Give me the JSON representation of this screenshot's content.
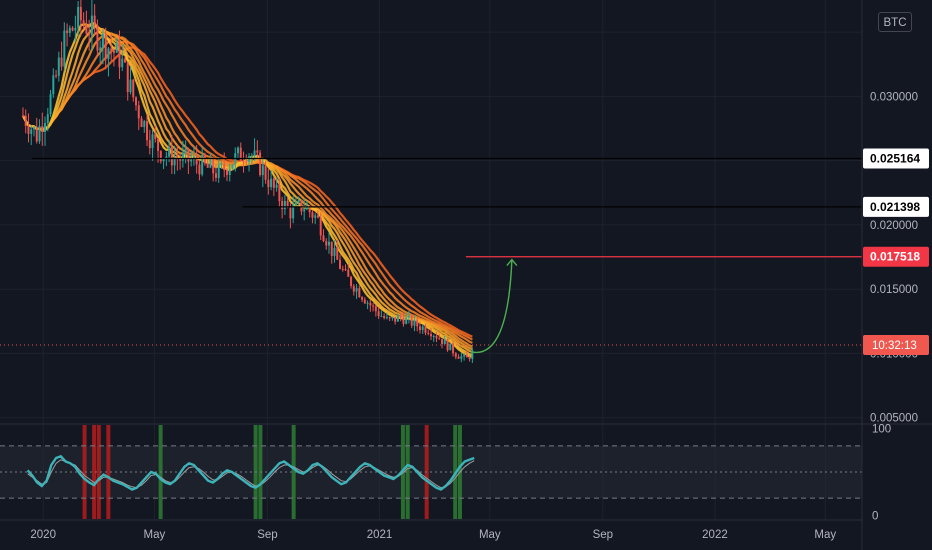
{
  "currency_label": "BTC",
  "countdown": "10:32:13",
  "colors": {
    "background": "#131722",
    "grid": "#1e222d",
    "up_candle": "#26a69a",
    "down_candle": "#ef5350",
    "ribbon_dark": "#f0611f",
    "ribbon_light": "#fbc02d",
    "support_line": "#000000",
    "target_line": "#f23645",
    "forecast_arrow": "#4caf50",
    "oscillator_main": "#3bb3b8",
    "oscillator_signal": "#9e9e9e",
    "oscillator_bull_bar": "#2e7d32",
    "oscillator_bear_bar": "#b71c1c"
  },
  "chart_data": [
    {
      "type": "candlestick",
      "pair_quote": "BTC",
      "y_scale": "linear",
      "ylim": [
        0.0045,
        0.0375
      ],
      "y_ticks": [
        "0.005000",
        "0.010000",
        "0.015000",
        "0.020000",
        "0.030000"
      ],
      "x_ticks": [
        "2020",
        "May",
        "Sep",
        "2021",
        "May",
        "Sep",
        "2022",
        "May"
      ],
      "x_tick_dates": [
        "2020-01-01",
        "2020-05-01",
        "2020-09-01",
        "2021-01-01",
        "2021-05-01",
        "2021-09-01",
        "2022-01-01",
        "2022-05-01"
      ],
      "xlim": [
        "2019-11-15",
        "2022-06-10"
      ],
      "price_path": [
        {
          "date": "2019-12-10",
          "value": 0.0285
        },
        {
          "date": "2019-12-25",
          "value": 0.027
        },
        {
          "date": "2020-01-10",
          "value": 0.03
        },
        {
          "date": "2020-01-25",
          "value": 0.0345
        },
        {
          "date": "2020-02-10",
          "value": 0.036
        },
        {
          "date": "2020-02-25",
          "value": 0.035
        },
        {
          "date": "2020-03-10",
          "value": 0.034
        },
        {
          "date": "2020-03-25",
          "value": 0.033
        },
        {
          "date": "2020-04-10",
          "value": 0.0295
        },
        {
          "date": "2020-04-25",
          "value": 0.027
        },
        {
          "date": "2020-05-10",
          "value": 0.0255
        },
        {
          "date": "2020-05-25",
          "value": 0.0252
        },
        {
          "date": "2020-06-10",
          "value": 0.025
        },
        {
          "date": "2020-06-25",
          "value": 0.0245
        },
        {
          "date": "2020-07-10",
          "value": 0.024
        },
        {
          "date": "2020-07-25",
          "value": 0.025
        },
        {
          "date": "2020-08-10",
          "value": 0.0258
        },
        {
          "date": "2020-08-25",
          "value": 0.0245
        },
        {
          "date": "2020-09-10",
          "value": 0.0225
        },
        {
          "date": "2020-09-25",
          "value": 0.021
        },
        {
          "date": "2020-10-10",
          "value": 0.0215
        },
        {
          "date": "2020-10-25",
          "value": 0.0205
        },
        {
          "date": "2020-11-10",
          "value": 0.018
        },
        {
          "date": "2020-11-25",
          "value": 0.016
        },
        {
          "date": "2020-12-10",
          "value": 0.0148
        },
        {
          "date": "2020-12-25",
          "value": 0.0135
        },
        {
          "date": "2021-01-10",
          "value": 0.0125
        },
        {
          "date": "2021-01-25",
          "value": 0.0128
        },
        {
          "date": "2021-02-10",
          "value": 0.0122
        },
        {
          "date": "2021-02-25",
          "value": 0.0118
        },
        {
          "date": "2021-03-10",
          "value": 0.011
        },
        {
          "date": "2021-03-25",
          "value": 0.01
        },
        {
          "date": "2021-04-05",
          "value": 0.0095
        },
        {
          "date": "2021-04-14",
          "value": 0.0102
        }
      ],
      "horizontal_levels": [
        {
          "value": 0.025164,
          "label": "0.025164",
          "start_date": "2019-12-20",
          "style": "black"
        },
        {
          "value": 0.021398,
          "label": "0.021398",
          "start_date": "2020-08-05",
          "style": "black"
        },
        {
          "value": 0.017518,
          "label": "0.017518",
          "start_date": "2021-04-05",
          "style": "red"
        }
      ],
      "current_price_line": {
        "value": 0.01065,
        "label_key": "countdown"
      },
      "forecast_arrow": {
        "from": {
          "date": "2021-04-12",
          "value": 0.0101
        },
        "to": {
          "date": "2021-05-25",
          "value": 0.0173
        }
      }
    },
    {
      "type": "line",
      "title": "",
      "ylim": [
        -5,
        105
      ],
      "y_ticks": [
        "0",
        "100"
      ],
      "bands": [
        20,
        50,
        80
      ],
      "series": [
        {
          "values": [
            52,
            46,
            38,
            34,
            40,
            58,
            66,
            68,
            62,
            60,
            56,
            48,
            42,
            38,
            35,
            42,
            47,
            44,
            40,
            38,
            36,
            33,
            30,
            32,
            38,
            44,
            50,
            48,
            42,
            38,
            36,
            40,
            48,
            56,
            60,
            58,
            52,
            46,
            40,
            38,
            42,
            48,
            52,
            50,
            46,
            42,
            38,
            34,
            32,
            36,
            42,
            48,
            54,
            60,
            62,
            58,
            54,
            50,
            48,
            52,
            58,
            60,
            56,
            50,
            44,
            40,
            36,
            38,
            44,
            50,
            56,
            60,
            58,
            54,
            50,
            46,
            44,
            42,
            46,
            52,
            58,
            56,
            50,
            44,
            40,
            36,
            32,
            30,
            34,
            40,
            48,
            56,
            62,
            64,
            66
          ]
        },
        {
          "values": [
            48,
            44,
            40,
            36,
            38,
            50,
            60,
            64,
            62,
            60,
            58,
            52,
            46,
            42,
            38,
            40,
            44,
            44,
            42,
            40,
            38,
            35,
            33,
            32,
            35,
            40,
            46,
            47,
            44,
            40,
            38,
            39,
            44,
            50,
            55,
            56,
            54,
            50,
            45,
            41,
            41,
            45,
            49,
            50,
            48,
            45,
            41,
            37,
            34,
            35,
            39,
            44,
            50,
            55,
            58,
            58,
            56,
            53,
            50,
            51,
            55,
            58,
            57,
            53,
            48,
            44,
            40,
            39,
            42,
            47,
            52,
            56,
            57,
            55,
            52,
            49,
            46,
            44,
            45,
            49,
            54,
            55,
            52,
            47,
            43,
            39,
            35,
            32,
            33,
            37,
            43,
            50,
            56,
            60,
            63
          ]
        }
      ],
      "signal_bars": [
        {
          "series_index": 12,
          "signal": "bear"
        },
        {
          "series_index": 14,
          "signal": "bear"
        },
        {
          "series_index": 15,
          "signal": "bear"
        },
        {
          "series_index": 17,
          "signal": "bear"
        },
        {
          "series_index": 28,
          "signal": "bull"
        },
        {
          "series_index": 48,
          "signal": "bull"
        },
        {
          "series_index": 49,
          "signal": "bull"
        },
        {
          "series_index": 56,
          "signal": "bull"
        },
        {
          "series_index": 79,
          "signal": "bull"
        },
        {
          "series_index": 80,
          "signal": "bull"
        },
        {
          "series_index": 84,
          "signal": "bear"
        },
        {
          "series_index": 90,
          "signal": "bull"
        },
        {
          "series_index": 91,
          "signal": "bull"
        }
      ]
    }
  ]
}
